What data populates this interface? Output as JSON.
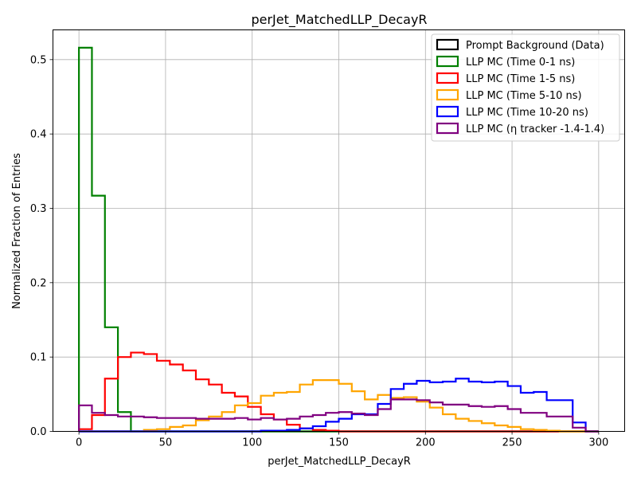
{
  "chart_data": {
    "type": "histogram",
    "title": "perJet_MatchedLLP_DecayR",
    "xlabel": "perJet_MatchedLLP_DecayR",
    "ylabel": "Normalized Fraction of Entries",
    "xlim": [
      -15,
      315
    ],
    "ylim": [
      0,
      0.54
    ],
    "xticks": [
      0,
      50,
      100,
      150,
      200,
      250,
      300
    ],
    "yticks": [
      0.0,
      0.1,
      0.2,
      0.3,
      0.4,
      0.5
    ],
    "grid": true,
    "legend_position": "top-right",
    "bin_edges": [
      0,
      7.5,
      15,
      22.5,
      30,
      37.5,
      45,
      52.5,
      60,
      67.5,
      75,
      82.5,
      90,
      97.5,
      105,
      112.5,
      120,
      127.5,
      135,
      142.5,
      150,
      157.5,
      165,
      172.5,
      180,
      187.5,
      195,
      202.5,
      210,
      217.5,
      225,
      232.5,
      240,
      247.5,
      255,
      262.5,
      270,
      277.5,
      285,
      292.5,
      300
    ],
    "series": [
      {
        "name": "Prompt Background (Data)",
        "color": "#000000",
        "values": [
          0,
          0,
          0,
          0,
          0,
          0,
          0,
          0,
          0,
          0,
          0,
          0,
          0,
          0,
          0,
          0,
          0,
          0,
          0,
          0,
          0,
          0,
          0,
          0,
          0,
          0,
          0,
          0,
          0,
          0,
          0,
          0,
          0,
          0,
          0,
          0,
          0,
          0,
          0,
          0
        ]
      },
      {
        "name": "LLP MC (Time 0-1 ns)",
        "color": "#008000",
        "values": [
          0.516,
          0.317,
          0.14,
          0.026,
          0,
          0,
          0,
          0,
          0,
          0,
          0,
          0,
          0,
          0,
          0,
          0,
          0,
          0,
          0,
          0,
          0,
          0,
          0,
          0,
          0,
          0,
          0,
          0,
          0,
          0,
          0,
          0,
          0,
          0,
          0,
          0,
          0,
          0,
          0,
          0
        ]
      },
      {
        "name": "LLP MC (Time 1-5 ns)",
        "color": "#ff0000",
        "values": [
          0.003,
          0.022,
          0.071,
          0.1,
          0.106,
          0.104,
          0.095,
          0.09,
          0.082,
          0.07,
          0.063,
          0.052,
          0.047,
          0.033,
          0.023,
          0.016,
          0.009,
          0.004,
          0.002,
          0.001,
          0,
          0,
          0,
          0,
          0,
          0,
          0,
          0,
          0,
          0,
          0,
          0,
          0,
          0,
          0,
          0,
          0,
          0,
          0,
          0
        ]
      },
      {
        "name": "LLP MC (Time 5-10 ns)",
        "color": "#ffa500",
        "values": [
          0,
          0,
          0,
          0,
          0,
          0.002,
          0.003,
          0.006,
          0.008,
          0.015,
          0.02,
          0.026,
          0.035,
          0.038,
          0.048,
          0.052,
          0.053,
          0.063,
          0.069,
          0.069,
          0.064,
          0.054,
          0.043,
          0.049,
          0.045,
          0.046,
          0.04,
          0.032,
          0.023,
          0.017,
          0.014,
          0.011,
          0.008,
          0.006,
          0.003,
          0.002,
          0.001,
          0,
          0,
          0
        ]
      },
      {
        "name": "LLP MC (Time 10-20 ns)",
        "color": "#0000ff",
        "values": [
          0,
          0,
          0,
          0,
          0,
          0,
          0,
          0,
          0,
          0,
          0,
          0,
          0,
          0,
          0.001,
          0.001,
          0.002,
          0.004,
          0.007,
          0.013,
          0.017,
          0.023,
          0.023,
          0.037,
          0.057,
          0.064,
          0.068,
          0.066,
          0.067,
          0.071,
          0.067,
          0.066,
          0.067,
          0.061,
          0.052,
          0.053,
          0.042,
          0.042,
          0.012,
          0
        ]
      },
      {
        "name": "LLP MC (η tracker -1.4-1.4)",
        "color": "#800080",
        "values": [
          0.035,
          0.025,
          0.022,
          0.02,
          0.02,
          0.019,
          0.018,
          0.018,
          0.018,
          0.017,
          0.017,
          0.017,
          0.018,
          0.016,
          0.018,
          0.016,
          0.017,
          0.02,
          0.022,
          0.025,
          0.026,
          0.024,
          0.022,
          0.03,
          0.043,
          0.043,
          0.042,
          0.039,
          0.036,
          0.036,
          0.034,
          0.033,
          0.034,
          0.03,
          0.025,
          0.025,
          0.02,
          0.02,
          0.005,
          0
        ]
      }
    ]
  }
}
